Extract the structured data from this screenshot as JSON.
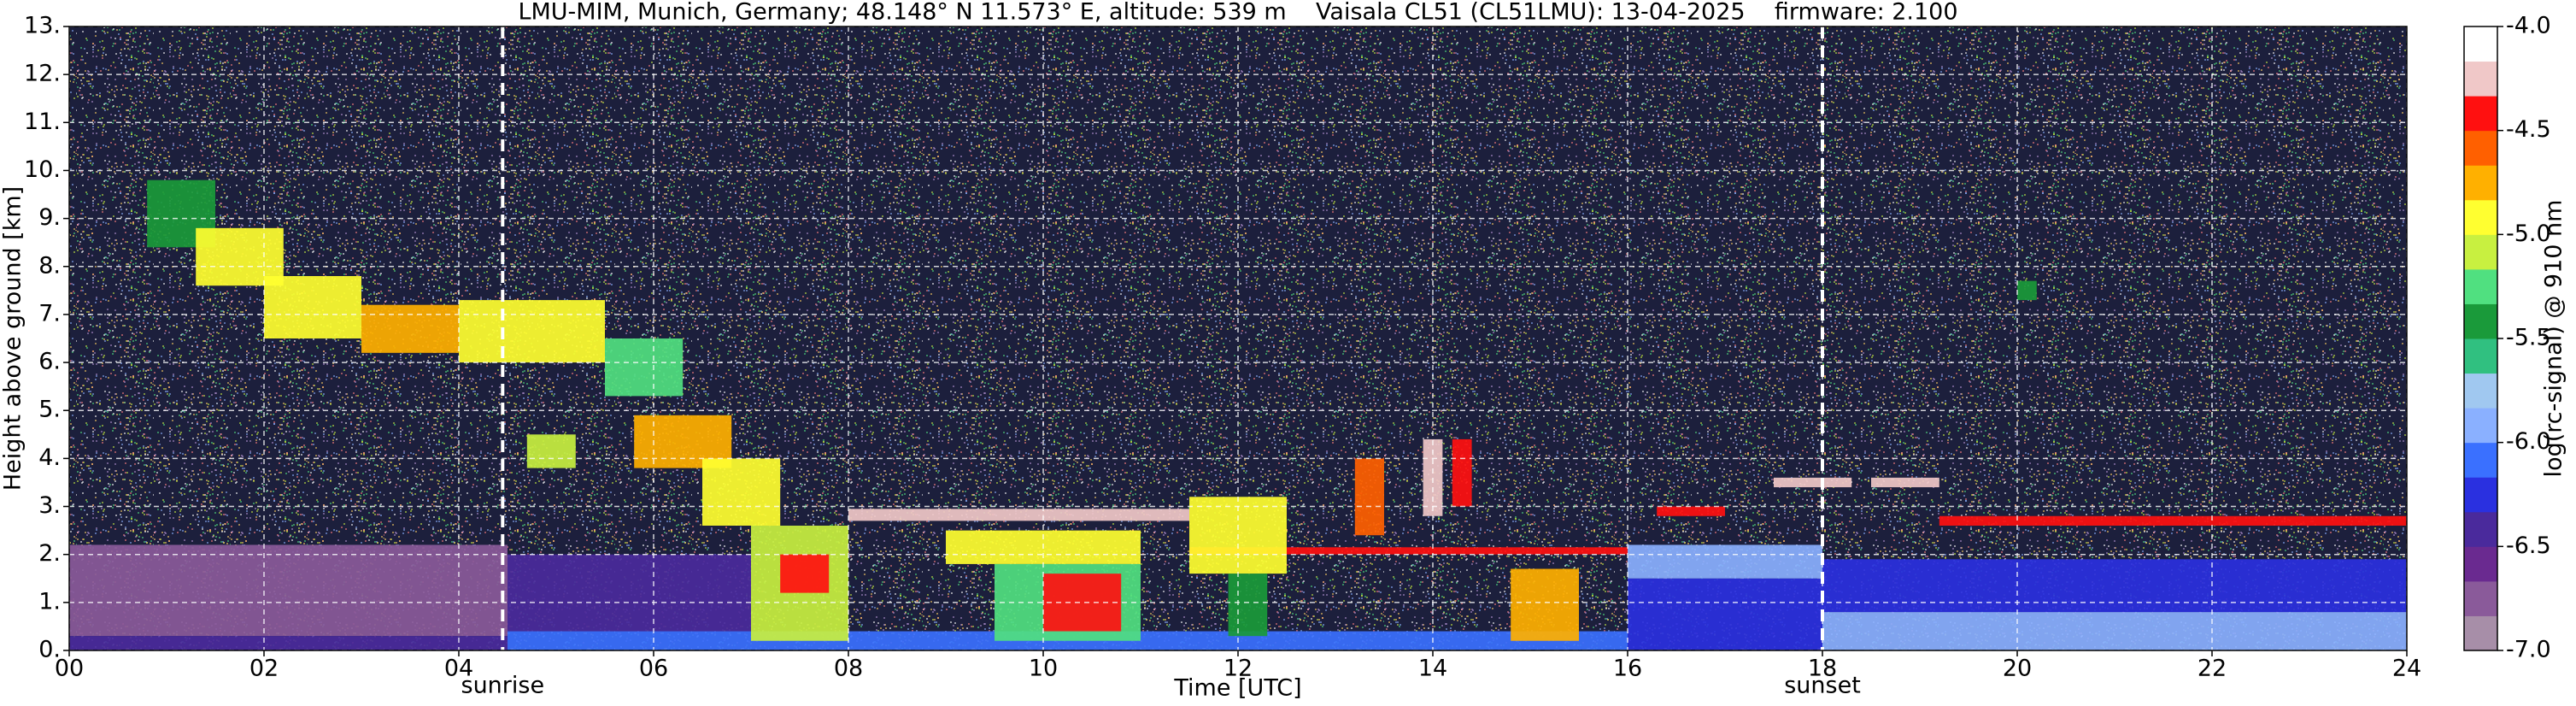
{
  "chart_data": {
    "type": "heatmap",
    "title": "LMU-MIM, Munich, Germany; 48.148° N 11.573° E, altitude: 539 m    Vaisala CL51 (CL51LMU): 13-04-2025    firmware: 2.100",
    "xlabel": "Time [UTC]",
    "ylabel": "Height above ground [km]",
    "colorbar_label": "log(rc-signal) @ 910 nm",
    "xlim": [
      0,
      24
    ],
    "xticks": [
      {
        "value": 0,
        "label": "00"
      },
      {
        "value": 2,
        "label": "02"
      },
      {
        "value": 4,
        "label": "04"
      },
      {
        "value": 6,
        "label": "06"
      },
      {
        "value": 8,
        "label": "08"
      },
      10,
      12,
      14,
      16,
      18,
      20,
      22,
      24
    ],
    "ylim": [
      0,
      13
    ],
    "yticks": [
      {
        "value": 0,
        "label": "0."
      },
      {
        "value": 1,
        "label": "1."
      },
      {
        "value": 2,
        "label": "2."
      },
      {
        "value": 3,
        "label": "3."
      },
      {
        "value": 4,
        "label": "4."
      },
      {
        "value": 5,
        "label": "5."
      },
      {
        "value": 6,
        "label": "6."
      },
      {
        "value": 7,
        "label": "7."
      },
      {
        "value": 8,
        "label": "8."
      },
      {
        "value": 9,
        "label": "9."
      },
      {
        "value": 10,
        "label": "10."
      },
      {
        "value": 11,
        "label": "11."
      },
      {
        "value": 12,
        "label": "12."
      },
      {
        "value": 13,
        "label": "13."
      }
    ],
    "clim": [
      -7,
      -4
    ],
    "cticks": [
      {
        "value": -7,
        "label": "-7.0"
      },
      -6.5,
      {
        "value": -6,
        "label": "-6.0"
      },
      -5.5,
      {
        "value": -5,
        "label": "-5.0"
      },
      -4.5,
      {
        "value": -4,
        "label": "-4.0"
      }
    ],
    "colormap": [
      "#a78ea8",
      "#8a5a9a",
      "#6a2a90",
      "#4a2a9c",
      "#2a30e0",
      "#3a70ff",
      "#8ab0ff",
      "#a0c8f0",
      "#30c080",
      "#1a9a3a",
      "#50e080",
      "#c8f040",
      "#ffff30",
      "#ffb000",
      "#ff6000",
      "#ff1010",
      "#f0c8c8",
      "#ffffff"
    ],
    "grid": true,
    "annotations": [
      {
        "text": "sunrise",
        "x": 4.45
      },
      {
        "text": "sunset",
        "x": 18.0
      }
    ],
    "features": [
      {
        "x": [
          0,
          4.5
        ],
        "y": [
          0.3,
          2.2
        ],
        "value": -6.8
      },
      {
        "x": [
          0,
          4.5
        ],
        "y": [
          0,
          0.3
        ],
        "value": -6.5
      },
      {
        "x": [
          4.5,
          16
        ],
        "y": [
          0,
          0.4
        ],
        "value": -6.1
      },
      {
        "x": [
          4.5,
          7
        ],
        "y": [
          0.4,
          2.0
        ],
        "value": -6.4
      },
      {
        "x": [
          16,
          18
        ],
        "y": [
          0,
          1.5
        ],
        "value": -6.3
      },
      {
        "x": [
          18,
          24
        ],
        "y": [
          0,
          0.8
        ],
        "value": -6.0
      },
      {
        "x": [
          18,
          24
        ],
        "y": [
          0.8,
          1.9
        ],
        "value": -6.3
      },
      {
        "x": [
          16,
          18
        ],
        "y": [
          1.5,
          2.2
        ],
        "value": -6.0
      },
      {
        "x": [
          0.8,
          1.5
        ],
        "y": [
          8.4,
          9.8
        ],
        "value": -5.4
      },
      {
        "x": [
          1.3,
          2.2
        ],
        "y": [
          7.6,
          8.8
        ],
        "value": -5.0
      },
      {
        "x": [
          2.0,
          3.0
        ],
        "y": [
          6.5,
          7.8
        ],
        "value": -4.9
      },
      {
        "x": [
          3.0,
          4.0
        ],
        "y": [
          6.2,
          7.2
        ],
        "value": -4.8
      },
      {
        "x": [
          4.0,
          5.5
        ],
        "y": [
          6.0,
          7.3
        ],
        "value": -5.0
      },
      {
        "x": [
          5.5,
          6.3
        ],
        "y": [
          5.3,
          6.5
        ],
        "value": -5.2
      },
      {
        "x": [
          4.7,
          5.2
        ],
        "y": [
          3.8,
          4.5
        ],
        "value": -5.1
      },
      {
        "x": [
          5.8,
          6.8
        ],
        "y": [
          3.8,
          4.9
        ],
        "value": -4.7
      },
      {
        "x": [
          6.5,
          7.3
        ],
        "y": [
          2.6,
          4.0
        ],
        "value": -5.0
      },
      {
        "x": [
          7.0,
          8.0
        ],
        "y": [
          0.2,
          2.6
        ],
        "value": -5.1
      },
      {
        "x": [
          7.3,
          7.8
        ],
        "y": [
          1.2,
          2.0
        ],
        "value": -4.5
      },
      {
        "x": [
          8.0,
          11.5
        ],
        "y": [
          2.7,
          2.95
        ],
        "value": -4.3
      },
      {
        "x": [
          9.0,
          11.0
        ],
        "y": [
          1.8,
          2.5
        ],
        "value": -4.9
      },
      {
        "x": [
          9.5,
          11.0
        ],
        "y": [
          0.2,
          1.8
        ],
        "value": -5.3
      },
      {
        "x": [
          10.0,
          10.8
        ],
        "y": [
          0.4,
          1.6
        ],
        "value": -4.4
      },
      {
        "x": [
          11.5,
          16
        ],
        "y": [
          2.0,
          2.15
        ],
        "value": -4.4
      },
      {
        "x": [
          11.5,
          12.5
        ],
        "y": [
          1.6,
          3.2
        ],
        "value": -5.0
      },
      {
        "x": [
          11.9,
          12.3
        ],
        "y": [
          0.3,
          1.6
        ],
        "value": -5.4
      },
      {
        "x": [
          13.2,
          13.5
        ],
        "y": [
          2.4,
          4.0
        ],
        "value": -4.6
      },
      {
        "x": [
          13.9,
          14.1
        ],
        "y": [
          2.8,
          4.4
        ],
        "value": -4.3
      },
      {
        "x": [
          14.2,
          14.4
        ],
        "y": [
          3.0,
          4.4
        ],
        "value": -4.4
      },
      {
        "x": [
          14.8,
          15.5
        ],
        "y": [
          0.2,
          1.7
        ],
        "value": -4.8
      },
      {
        "x": [
          16.3,
          17.0
        ],
        "y": [
          2.8,
          3.0
        ],
        "value": -4.4
      },
      {
        "x": [
          17.5,
          18.3
        ],
        "y": [
          3.4,
          3.6
        ],
        "value": -4.3
      },
      {
        "x": [
          18.5,
          19.2
        ],
        "y": [
          3.4,
          3.6
        ],
        "value": -4.3
      },
      {
        "x": [
          19.2,
          24
        ],
        "y": [
          2.6,
          2.8
        ],
        "value": -4.4
      },
      {
        "x": [
          20.0,
          20.2
        ],
        "y": [
          7.3,
          7.7
        ],
        "value": -5.4
      }
    ]
  }
}
